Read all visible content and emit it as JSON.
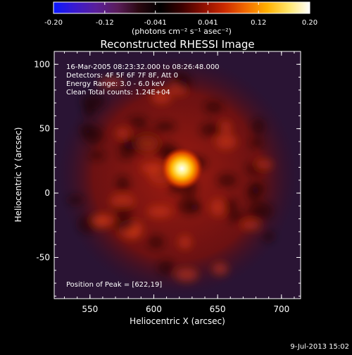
{
  "chart_data": {
    "type": "heatmap",
    "title": "Reconstructed RHESSI Image",
    "xlabel": "Heliocentric X (arcsec)",
    "ylabel": "Heliocentric Y (arcsec)",
    "xlim": [
      522,
      715
    ],
    "ylim": [
      -82,
      110
    ],
    "xticks": [
      550,
      600,
      650,
      700
    ],
    "yticks": [
      -50,
      0,
      50,
      100
    ],
    "colorbar": {
      "min": -0.2,
      "max": 0.2,
      "ticks": [
        "-0.20",
        "-0.12",
        "-0.041",
        "0.041",
        "0.12",
        "0.20"
      ],
      "unit_label": "(photons cm⁻² s⁻¹ asec⁻²)",
      "colors": [
        "#0a18ff",
        "#3a1ad0",
        "#5a1f9a",
        "#5a1d5a",
        "#2a0810",
        "#000000",
        "#3a0000",
        "#8a0e00",
        "#cc2a00",
        "#f26a00",
        "#ffb000",
        "#ffe66a",
        "#ffffff"
      ]
    },
    "annotations": [
      "16-Mar-2005 08:23:32.000 to 08:26:48.000",
      "Detectors: 4F 5F 6F 7F 8F, Att 0",
      "Energy Range: 3.0 - 6.0 keV",
      "Clean    Total counts: 1.24E+04"
    ],
    "peak": {
      "x": 622,
      "y": 19,
      "label": "Position of Peak = [622,19]"
    }
  },
  "footer_date": "9-Jul-2013 15:02"
}
